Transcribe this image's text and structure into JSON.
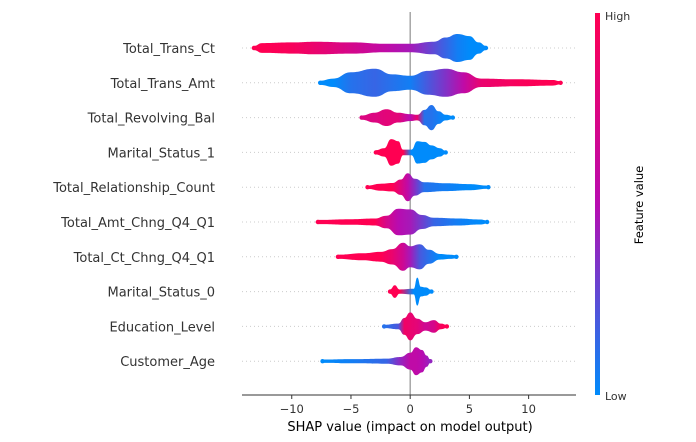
{
  "chart_data": {
    "type": "scatter",
    "subtype": "shap-beeswarm-summary",
    "title": "",
    "xlabel": "SHAP value (impact on model output)",
    "ylabel": "",
    "xlim": [
      -14.2,
      14.0
    ],
    "xticks": [
      {
        "value": -10,
        "label": "−10"
      },
      {
        "value": -5,
        "label": "−5"
      },
      {
        "value": 0,
        "label": "0"
      },
      {
        "value": 5,
        "label": "5"
      },
      {
        "value": 10,
        "label": "10"
      }
    ],
    "zero_line": 0,
    "grid": "dotted horizontal row guides",
    "colorbar": {
      "title": "Feature value",
      "high_label": "High",
      "low_label": "Low",
      "high_color": "#ff0052",
      "mid_color": "#b80cb0",
      "low_color": "#008bfb",
      "placement": "right"
    },
    "features": [
      {
        "name": "Total_Trans_Ct",
        "min": -13.2,
        "max": 6.4,
        "profile": [
          [
            -13.2,
            0.15,
            1.0
          ],
          [
            -12.5,
            0.35,
            1.0
          ],
          [
            -10,
            0.4,
            0.95
          ],
          [
            -8,
            0.45,
            0.85
          ],
          [
            -5,
            0.4,
            0.7
          ],
          [
            -2,
            0.3,
            0.55
          ],
          [
            0,
            0.3,
            0.45
          ],
          [
            2,
            0.45,
            0.25
          ],
          [
            3,
            0.75,
            0.15
          ],
          [
            4,
            1.0,
            0.05
          ],
          [
            5,
            0.85,
            0.0
          ],
          [
            5.8,
            0.4,
            0.0
          ],
          [
            6.4,
            0.15,
            0.0
          ]
        ]
      },
      {
        "name": "Total_Trans_Amt",
        "min": -7.6,
        "max": 12.7,
        "profile": [
          [
            -7.6,
            0.15,
            0.0
          ],
          [
            -6.5,
            0.3,
            0.0
          ],
          [
            -5,
            0.75,
            0.1
          ],
          [
            -3,
            1.0,
            0.15
          ],
          [
            -1.5,
            0.6,
            0.1
          ],
          [
            0,
            0.5,
            0.05
          ],
          [
            1.5,
            0.85,
            0.2
          ],
          [
            3,
            1.0,
            0.35
          ],
          [
            4.5,
            0.75,
            0.55
          ],
          [
            6,
            0.3,
            0.85
          ],
          [
            9,
            0.25,
            0.95
          ],
          [
            12,
            0.2,
            1.0
          ],
          [
            12.7,
            0.1,
            1.0
          ]
        ]
      },
      {
        "name": "Total_Revolving_Bal",
        "min": -4.1,
        "max": 3.6,
        "profile": [
          [
            -4.1,
            0.15,
            0.75
          ],
          [
            -3,
            0.35,
            0.75
          ],
          [
            -2,
            0.6,
            0.8
          ],
          [
            -1,
            0.35,
            0.8
          ],
          [
            0,
            0.25,
            0.5
          ],
          [
            0.6,
            0.2,
            0.85
          ],
          [
            1.2,
            0.55,
            0.1
          ],
          [
            1.8,
            0.9,
            0.1
          ],
          [
            2.4,
            0.45,
            0.05
          ],
          [
            3.0,
            0.2,
            0.0
          ],
          [
            3.6,
            0.12,
            0.0
          ]
        ]
      },
      {
        "name": "Marital_Status_1",
        "min": -2.9,
        "max": 3.0,
        "profile": [
          [
            -2.9,
            0.15,
            1.0
          ],
          [
            -2.2,
            0.3,
            1.0
          ],
          [
            -1.6,
            0.95,
            1.0
          ],
          [
            -1.0,
            0.8,
            1.0
          ],
          [
            -0.6,
            0.2,
            1.0
          ],
          [
            0.1,
            0.2,
            0.0
          ],
          [
            0.6,
            0.8,
            0.0
          ],
          [
            1.2,
            0.75,
            0.0
          ],
          [
            1.8,
            0.5,
            0.0
          ],
          [
            2.5,
            0.3,
            0.0
          ],
          [
            3.0,
            0.12,
            0.0
          ]
        ]
      },
      {
        "name": "Total_Relationship_Count",
        "min": -3.6,
        "max": 6.6,
        "profile": [
          [
            -3.6,
            0.12,
            1.0
          ],
          [
            -2.5,
            0.25,
            1.0
          ],
          [
            -1.5,
            0.3,
            1.0
          ],
          [
            -0.8,
            0.55,
            0.75
          ],
          [
            -0.2,
            1.0,
            0.55
          ],
          [
            0.4,
            0.6,
            0.35
          ],
          [
            1.2,
            0.35,
            0.1
          ],
          [
            3,
            0.28,
            0.05
          ],
          [
            5,
            0.22,
            0.0
          ],
          [
            6.6,
            0.1,
            0.0
          ]
        ]
      },
      {
        "name": "Total_Amt_Chng_Q4_Q1",
        "min": -7.8,
        "max": 6.5,
        "profile": [
          [
            -7.8,
            0.15,
            1.0
          ],
          [
            -5,
            0.2,
            1.0
          ],
          [
            -3,
            0.25,
            1.0
          ],
          [
            -2,
            0.45,
            0.7
          ],
          [
            -1,
            0.95,
            0.5
          ],
          [
            0,
            0.9,
            0.45
          ],
          [
            1,
            0.5,
            0.3
          ],
          [
            2,
            0.3,
            0.15
          ],
          [
            4,
            0.25,
            0.05
          ],
          [
            5.9,
            0.18,
            0.0
          ],
          [
            6.5,
            0.1,
            0.0
          ]
        ]
      },
      {
        "name": "Total_Ct_Chng_Q4_Q1",
        "min": -6.1,
        "max": 3.9,
        "profile": [
          [
            -6.1,
            0.15,
            1.0
          ],
          [
            -4,
            0.25,
            1.0
          ],
          [
            -2.5,
            0.35,
            1.0
          ],
          [
            -1.5,
            0.55,
            0.85
          ],
          [
            -0.6,
            1.0,
            0.65
          ],
          [
            0,
            0.75,
            0.45
          ],
          [
            0.8,
            0.9,
            0.2
          ],
          [
            1.6,
            0.5,
            0.1
          ],
          [
            2.5,
            0.2,
            0.0
          ],
          [
            3.4,
            0.15,
            0.0
          ],
          [
            3.9,
            0.1,
            0.0
          ]
        ]
      },
      {
        "name": "Marital_Status_0",
        "min": -1.7,
        "max": 1.8,
        "profile": [
          [
            -1.7,
            0.15,
            1.0
          ],
          [
            -1.3,
            0.45,
            1.0
          ],
          [
            -0.9,
            0.15,
            1.0
          ],
          [
            0.3,
            0.2,
            0.0
          ],
          [
            0.6,
            1.0,
            0.0
          ],
          [
            0.9,
            0.35,
            0.0
          ],
          [
            1.3,
            0.3,
            0.0
          ],
          [
            1.8,
            0.12,
            0.0
          ]
        ]
      },
      {
        "name": "Education_Level",
        "min": -2.2,
        "max": 3.1,
        "profile": [
          [
            -2.2,
            0.12,
            0.1
          ],
          [
            -1.0,
            0.2,
            0.2
          ],
          [
            -0.5,
            0.6,
            0.9
          ],
          [
            0,
            1.0,
            0.85
          ],
          [
            0.6,
            0.55,
            0.8
          ],
          [
            1.3,
            0.3,
            0.65
          ],
          [
            2.0,
            0.45,
            0.7
          ],
          [
            2.6,
            0.2,
            0.95
          ],
          [
            3.1,
            0.1,
            1.0
          ]
        ]
      },
      {
        "name": "Customer_Age",
        "min": -7.4,
        "max": 1.7,
        "profile": [
          [
            -7.4,
            0.12,
            0.0
          ],
          [
            -5,
            0.15,
            0.05
          ],
          [
            -2,
            0.18,
            0.15
          ],
          [
            -0.8,
            0.3,
            0.4
          ],
          [
            0,
            0.6,
            0.55
          ],
          [
            0.5,
            1.0,
            0.55
          ],
          [
            1.0,
            0.8,
            0.5
          ],
          [
            1.4,
            0.4,
            0.45
          ],
          [
            1.7,
            0.12,
            0.4
          ]
        ]
      }
    ]
  }
}
